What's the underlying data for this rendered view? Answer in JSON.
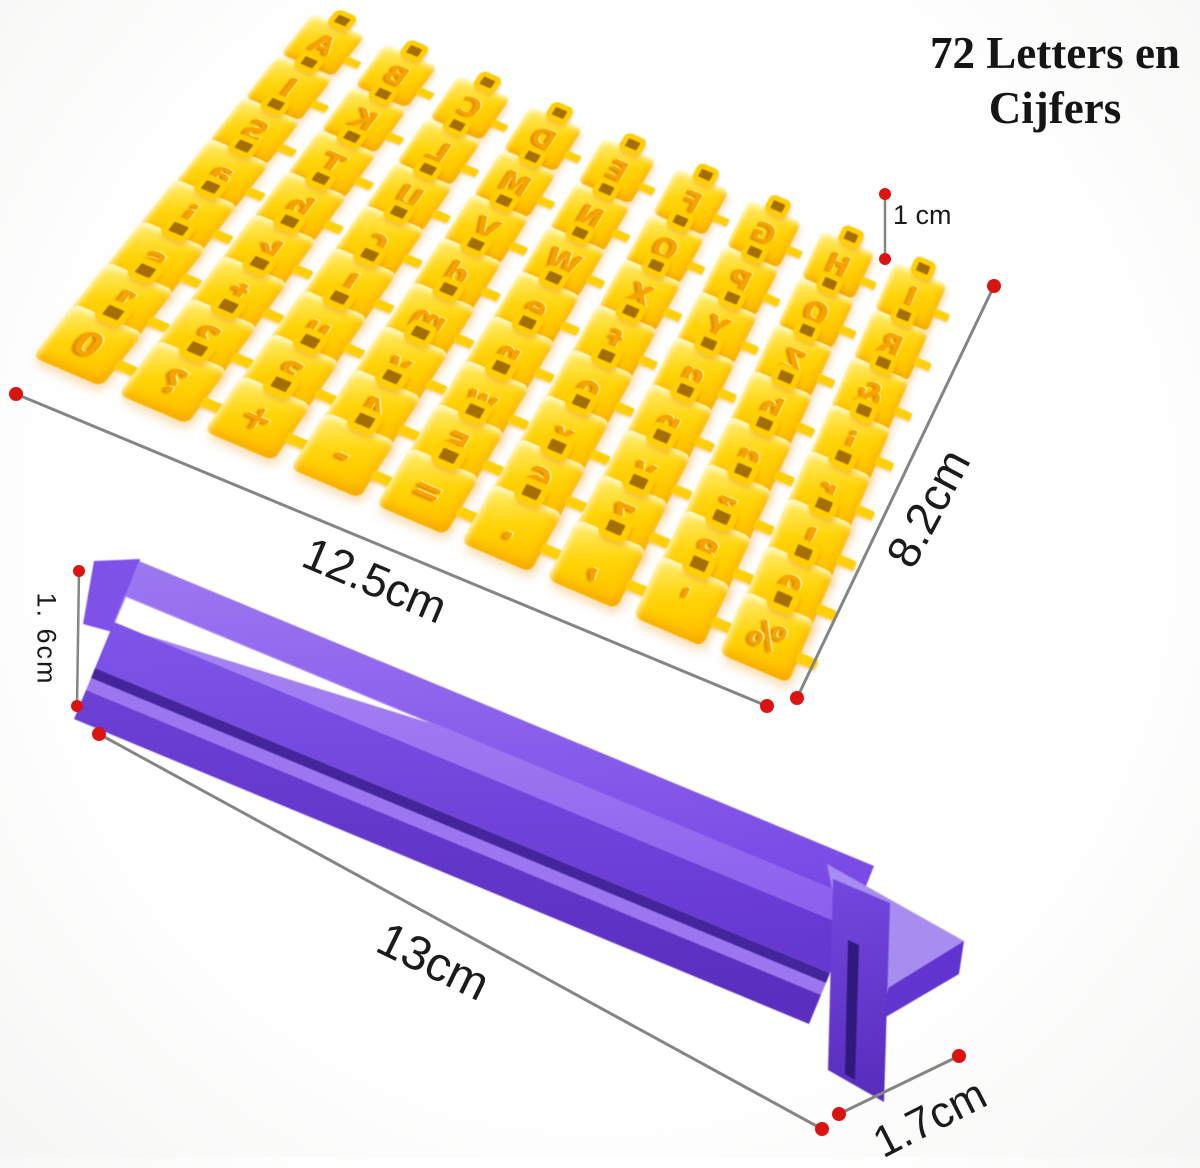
{
  "title": "72 Letters en Cijfers",
  "stamp_sheet": {
    "piece_count": 72,
    "rows": 8,
    "cols": 9,
    "glyph_rows": [
      "ABCDEFGHI",
      "JKLMNOPQR",
      "STUVWXYZ&",
      "abcdefghi",
      "jklmnopqr",
      "stuvwxyz!",
      "123456789",
      "0?+-=.,'%"
    ]
  },
  "dimensions": {
    "stamp_height": "1 cm",
    "sheet_length": "12.5cm",
    "sheet_width": "8.2cm",
    "rail_height": "1. 6cm",
    "rail_length": "13cm",
    "rail_width": "1.7cm"
  },
  "colors": {
    "stamp_yellow": "#FFD10A",
    "stamp_glyph": "#F1A300",
    "rail_purple": "#7B4BE8",
    "rail_purple_light": "#A186EC",
    "rail_purple_dark": "#5A2FC0",
    "dimension_line": "#858585",
    "dimension_dot": "#DC1411",
    "text": "#1A1A1A",
    "background": "#FFFFFF"
  }
}
